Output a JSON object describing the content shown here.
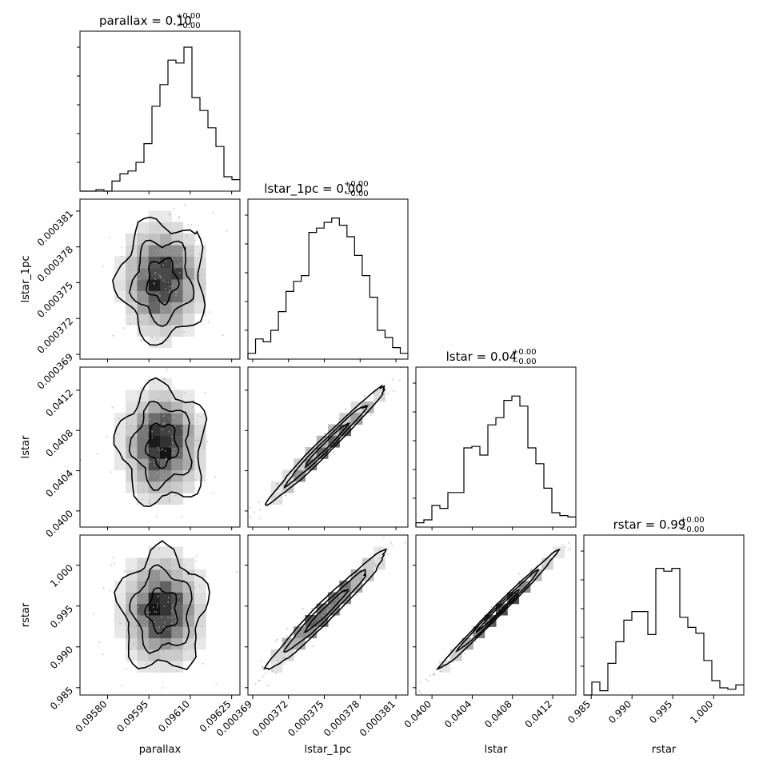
{
  "figure": {
    "params": [
      "parallax",
      "lstar_1pc",
      "lstar",
      "rstar"
    ],
    "colors": {
      "line": "#000000",
      "background": "#ffffff",
      "density_light": "#f2f2f2",
      "density_dark": "#000000",
      "scatter": "#aaaaaa"
    }
  },
  "chart_data": {
    "type": "corner",
    "panel_order": [
      [
        "parallax"
      ],
      [
        "parallax",
        "lstar_1pc"
      ],
      [
        "lstar_1pc"
      ],
      [
        "parallax",
        "lstar"
      ],
      [
        "lstar_1pc",
        "lstar"
      ],
      [
        "lstar"
      ],
      [
        "parallax",
        "rstar"
      ],
      [
        "lstar_1pc",
        "rstar"
      ],
      [
        "lstar",
        "rstar"
      ],
      [
        "rstar"
      ]
    ],
    "parameters": [
      {
        "name": "parallax",
        "axis_label": "parallax",
        "title": "parallax = 0.10",
        "title_sup": "+0.00",
        "title_sub": "−0.00",
        "range": [
          0.0957,
          0.09628
        ],
        "ticks": [
          0.0958,
          0.09595,
          0.0961,
          0.09625
        ],
        "tick_labels": [
          "0.09580",
          "0.09595",
          "0.09610",
          "0.09625"
        ],
        "center": 0.095998,
        "sigma": 6.8e-05,
        "hist": [
          0.0,
          0.0,
          0.01,
          0.0,
          0.07,
          0.12,
          0.14,
          0.2,
          0.33,
          0.59,
          0.74,
          0.91,
          0.89,
          1.0,
          0.65,
          0.56,
          0.44,
          0.31,
          0.1,
          0.08
        ]
      },
      {
        "name": "lstar_1pc",
        "axis_label": "lstar_1pc",
        "title": "lstar_1pc = 0.00",
        "title_sup": "+0.00",
        "title_sub": "−0.00",
        "range": [
          0.0003686,
          0.000382
        ],
        "ticks": [
          0.000369,
          0.000372,
          0.000375,
          0.000378,
          0.000381
        ],
        "tick_labels": [
          "0.000369",
          "0.000372",
          "0.000375",
          "0.000378",
          "0.000381"
        ],
        "center": 0.0003752,
        "sigma": 2.2e-06,
        "hist": [
          0.04,
          0.14,
          0.12,
          0.2,
          0.33,
          0.47,
          0.54,
          0.58,
          0.88,
          0.91,
          0.95,
          0.98,
          0.93,
          0.85,
          0.72,
          0.58,
          0.43,
          0.2,
          0.15,
          0.08,
          0.04
        ]
      },
      {
        "name": "lstar",
        "axis_label": "lstar",
        "title": "lstar = 0.04",
        "title_sup": "+0.00",
        "title_sub": "−0.00",
        "range": [
          0.03984,
          0.04143
        ],
        "ticks": [
          0.04,
          0.0404,
          0.0408,
          0.0412
        ],
        "tick_labels": [
          "0.0400",
          "0.0404",
          "0.0408",
          "0.0412"
        ],
        "center": 0.04066,
        "sigma": 0.00026,
        "hist": [
          0.03,
          0.05,
          0.15,
          0.13,
          0.24,
          0.24,
          0.55,
          0.56,
          0.5,
          0.71,
          0.76,
          0.88,
          0.91,
          0.84,
          0.55,
          0.44,
          0.27,
          0.1,
          0.08,
          0.07
        ]
      },
      {
        "name": "rstar",
        "axis_label": "rstar",
        "title": "rstar = 0.99",
        "title_sup": "+0.00",
        "title_sub": "−0.00",
        "range": [
          0.9841,
          1.0037
        ],
        "ticks": [
          0.985,
          0.99,
          0.995,
          1.0
        ],
        "tick_labels": [
          "0.985",
          "0.990",
          "0.995",
          "1.000"
        ],
        "center": 0.9945,
        "sigma": 0.0032,
        "hist": [
          0.0,
          0.09,
          0.03,
          0.22,
          0.37,
          0.52,
          0.58,
          0.58,
          0.42,
          0.88,
          0.86,
          0.88,
          0.54,
          0.47,
          0.43,
          0.24,
          0.1,
          0.05,
          0.04,
          0.07
        ]
      }
    ],
    "pairs": [
      {
        "x": "parallax",
        "y": "lstar_1pc",
        "corr": 0.0
      },
      {
        "x": "parallax",
        "y": "lstar",
        "corr": 0.0
      },
      {
        "x": "parallax",
        "y": "rstar",
        "corr": 0.0
      },
      {
        "x": "lstar_1pc",
        "y": "lstar",
        "corr": 0.985
      },
      {
        "x": "lstar_1pc",
        "y": "rstar",
        "corr": 0.975
      },
      {
        "x": "lstar",
        "y": "rstar",
        "corr": 0.993
      }
    ]
  }
}
